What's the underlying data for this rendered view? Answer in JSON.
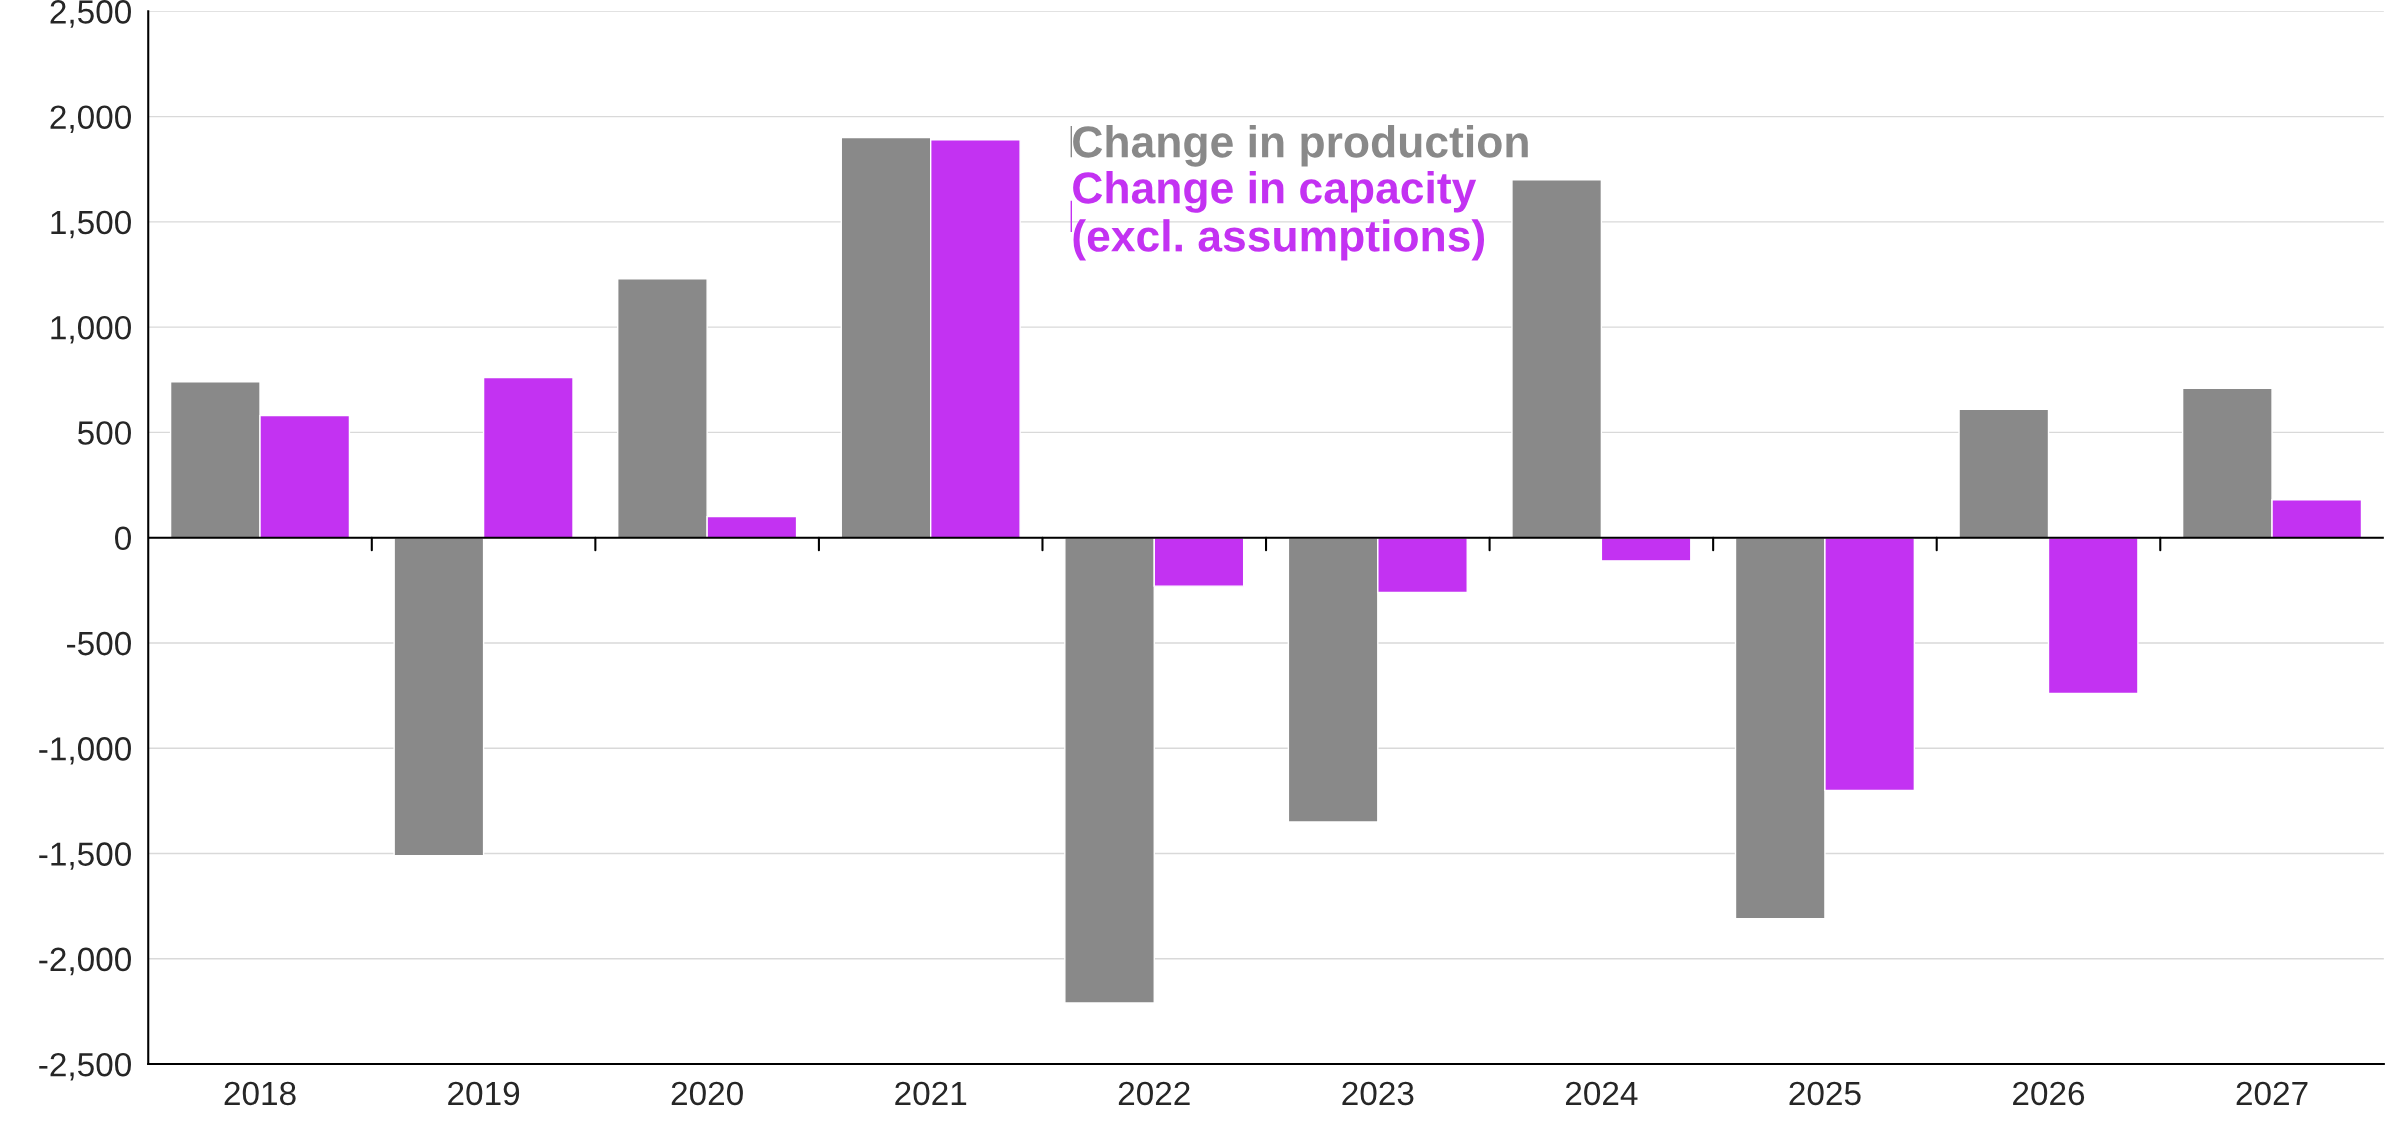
{
  "chart_data": {
    "type": "bar",
    "categories": [
      "2018",
      "2019",
      "2020",
      "2021",
      "2022",
      "2023",
      "2024",
      "2025",
      "2026",
      "2027"
    ],
    "series": [
      {
        "name": "Change in production",
        "color": "#898989",
        "values": [
          740,
          -1510,
          1230,
          1900,
          -2210,
          -1350,
          1700,
          -1810,
          610,
          710
        ]
      },
      {
        "name": "Change in capacity\n(excl. assumptions)",
        "color": "#c332f2",
        "values": [
          580,
          760,
          100,
          1890,
          -230,
          -260,
          -110,
          -1200,
          -740,
          180
        ]
      }
    ],
    "ylim": [
      -2500,
      2500
    ],
    "yticks": [
      {
        "value": -2500,
        "label": "-2,500"
      },
      {
        "value": -2000,
        "label": "-2,000"
      },
      {
        "value": -1500,
        "label": "-1,500"
      },
      {
        "value": -1000,
        "label": "-1,000"
      },
      -500,
      0,
      500,
      {
        "value": 1000,
        "label": "1,000"
      },
      {
        "value": 1500,
        "label": "1,500"
      },
      {
        "value": 2000,
        "label": "2,000"
      },
      {
        "value": 2500,
        "label": "2,500"
      }
    ],
    "ref_lines": [
      {
        "axis": "y",
        "value": 0,
        "color": "#000000"
      }
    ],
    "grid": "y",
    "legend": "top"
  }
}
